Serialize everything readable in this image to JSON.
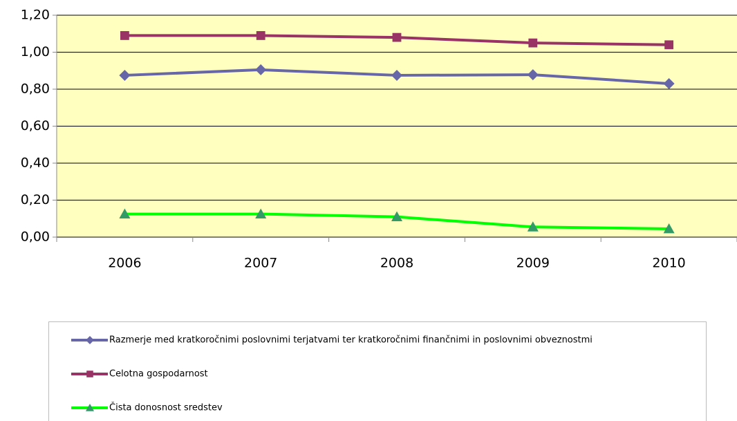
{
  "chart_data": {
    "type": "line",
    "categories": [
      "2006",
      "2007",
      "2008",
      "2009",
      "2010"
    ],
    "series": [
      {
        "name": "Razmerje med kratkoročnimi poslovnimi terjatvami ter kratkoročnimi finančnimi in poslovnimi obveznostmi",
        "color": "#6666a8",
        "marker": "diamond",
        "marker_color": "#6666a8",
        "values": [
          0.875,
          0.905,
          0.875,
          0.878,
          0.83
        ]
      },
      {
        "name": "Celotna gospodarnost",
        "color": "#993366",
        "marker": "square",
        "marker_color": "#993366",
        "values": [
          1.09,
          1.09,
          1.08,
          1.05,
          1.04
        ]
      },
      {
        "name": "Čista donosnost sredstev",
        "color": "#00ff00",
        "marker": "triangle",
        "marker_color": "#339966",
        "values": [
          0.125,
          0.125,
          0.11,
          0.055,
          0.045
        ]
      }
    ],
    "ylim": [
      0,
      1.2
    ],
    "yticks": [
      {
        "value": 0,
        "label": "0,00"
      },
      {
        "value": 0.2,
        "label": "0,20"
      },
      {
        "value": 0.4,
        "label": "0,40"
      },
      {
        "value": 0.6,
        "label": "0,60"
      },
      {
        "value": 0.8,
        "label": "0,80"
      },
      {
        "value": 1.0,
        "label": "1,00"
      },
      {
        "value": 1.2,
        "label": "1,20"
      }
    ],
    "grid": true,
    "plot_background": "#ffffc0",
    "legend": "bottom"
  }
}
